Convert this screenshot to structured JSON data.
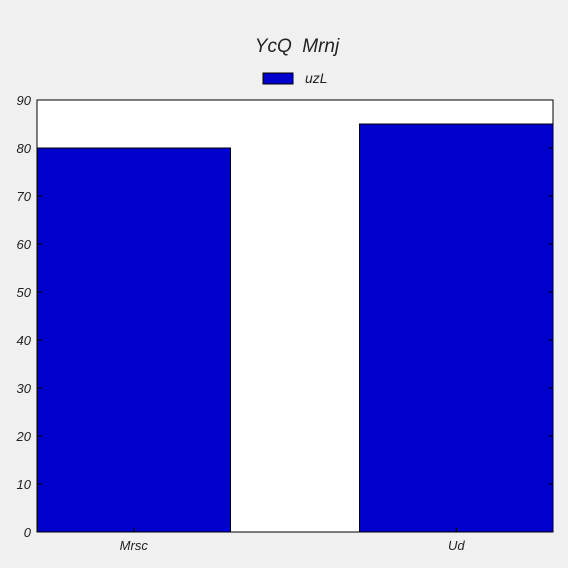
{
  "chart_data": {
    "type": "bar",
    "title": "YcQ  Mrnj",
    "xlabel": "",
    "ylabel": "",
    "categories": [
      "Mrsc",
      "Ud"
    ],
    "series": [
      {
        "name": "uzL",
        "values": [
          80,
          85
        ],
        "color": "#0000cc"
      }
    ],
    "ylim": [
      0,
      90
    ],
    "yticks": [
      0,
      10,
      20,
      30,
      40,
      50,
      60,
      70,
      80,
      90
    ],
    "grid": false,
    "legend": "top-center"
  },
  "colors": {
    "background": "#f0f0f0",
    "plot_background": "#ffffff",
    "bar": "#0000cc",
    "edge": "#000000"
  }
}
